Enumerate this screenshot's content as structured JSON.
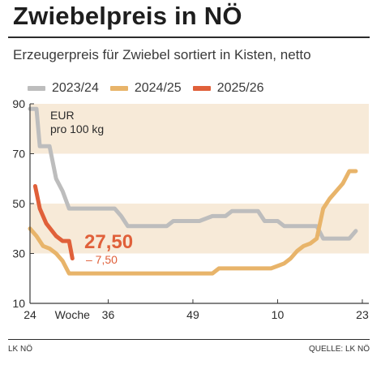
{
  "title": "Zwiebelpreis in NÖ",
  "subtitle": "Erzeugerpreis für Zwiebel sortiert in Kisten, netto",
  "footer": {
    "left": "LK NÖ",
    "right": "QUELLE: LK NÖ"
  },
  "chart_data": {
    "type": "line",
    "unit_label": [
      "EUR",
      "pro 100 kg"
    ],
    "ylim": [
      10,
      90
    ],
    "yticks": [
      10,
      30,
      50,
      70,
      90
    ],
    "xticks": [
      {
        "label": "24",
        "pos": 0
      },
      {
        "label": "Woche",
        "pos": 6.5
      },
      {
        "label": "36",
        "pos": 12
      },
      {
        "label": "49",
        "pos": 25
      },
      {
        "label": "10",
        "pos": 38
      },
      {
        "label": "23",
        "pos": 51
      }
    ],
    "x_range": [
      0,
      52
    ],
    "bands": [
      [
        30,
        50
      ],
      [
        70,
        90
      ]
    ],
    "grid": false,
    "legend_position": "top",
    "annotation": {
      "value": "27,50",
      "change": "– 7,50"
    },
    "colors": {
      "band": "#f7ead8",
      "axis": "#3a3a3a",
      "annotation": "#e0603a"
    },
    "series": [
      {
        "name": "2023/24",
        "color": "#bdbdbd",
        "points": [
          [
            0,
            88
          ],
          [
            1,
            88
          ],
          [
            1.5,
            73
          ],
          [
            3,
            73
          ],
          [
            4,
            60
          ],
          [
            5,
            55
          ],
          [
            6,
            48
          ],
          [
            8,
            48
          ],
          [
            13,
            48
          ],
          [
            14,
            45
          ],
          [
            15,
            41
          ],
          [
            21,
            41
          ],
          [
            22,
            43
          ],
          [
            26,
            43
          ],
          [
            28,
            45
          ],
          [
            30,
            45
          ],
          [
            31,
            47
          ],
          [
            35,
            47
          ],
          [
            36,
            43
          ],
          [
            38,
            43
          ],
          [
            39,
            41
          ],
          [
            44,
            41
          ],
          [
            45,
            36
          ],
          [
            49,
            36
          ],
          [
            50,
            39
          ]
        ]
      },
      {
        "name": "2024/25",
        "color": "#e8b46a",
        "points": [
          [
            0,
            40
          ],
          [
            1,
            37
          ],
          [
            2,
            33
          ],
          [
            3,
            32
          ],
          [
            4,
            30
          ],
          [
            5,
            27
          ],
          [
            6,
            22
          ],
          [
            10,
            22
          ],
          [
            15,
            22
          ],
          [
            20,
            22
          ],
          [
            25,
            22
          ],
          [
            28,
            22
          ],
          [
            29,
            24
          ],
          [
            33,
            24
          ],
          [
            37,
            24
          ],
          [
            38,
            25
          ],
          [
            39,
            26
          ],
          [
            40,
            28
          ],
          [
            41,
            31
          ],
          [
            42,
            33
          ],
          [
            43,
            34
          ],
          [
            44,
            36
          ],
          [
            45,
            48
          ],
          [
            46,
            52
          ],
          [
            47,
            55
          ],
          [
            48,
            58
          ],
          [
            49,
            63
          ],
          [
            50,
            63
          ]
        ]
      },
      {
        "name": "2025/26",
        "color": "#e0603a",
        "points": [
          [
            0.8,
            57
          ],
          [
            1.5,
            48
          ],
          [
            2.5,
            42
          ],
          [
            4,
            37
          ],
          [
            5,
            35
          ],
          [
            6,
            35
          ],
          [
            6.5,
            28
          ]
        ]
      }
    ]
  }
}
